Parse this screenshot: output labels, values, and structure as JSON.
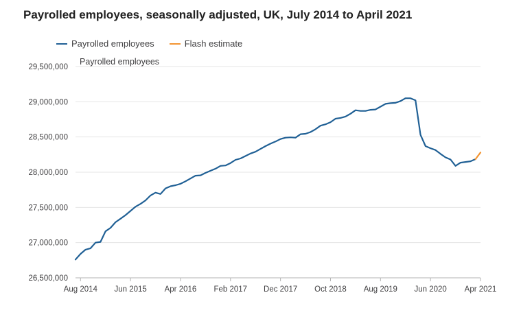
{
  "chart_data": {
    "type": "line",
    "title": "Payrolled employees, seasonally adjusted, UK, July 2014 to April 2021",
    "ylabel": "Payrolled employees",
    "xlabel": "",
    "ylim": [
      26500000,
      29500000
    ],
    "yticks": [
      26500000,
      27000000,
      27500000,
      28000000,
      28500000,
      29000000,
      29500000
    ],
    "ytick_labels": [
      "26,500,000",
      "27,000,000",
      "27,500,000",
      "28,000,000",
      "28,500,000",
      "29,000,000",
      "29,500,000"
    ],
    "x_range": [
      "2014-07",
      "2021-04"
    ],
    "xticks": [
      {
        "date": "2014-08",
        "label": "Aug 2014"
      },
      {
        "date": "2015-06",
        "label": "Jun 2015"
      },
      {
        "date": "2016-04",
        "label": "Apr 2016"
      },
      {
        "date": "2017-02",
        "label": "Feb 2017"
      },
      {
        "date": "2017-12",
        "label": "Dec 2017"
      },
      {
        "date": "2018-10",
        "label": "Oct 2018"
      },
      {
        "date": "2019-08",
        "label": "Aug 2019"
      },
      {
        "date": "2020-06",
        "label": "Jun 2020"
      },
      {
        "date": "2021-04",
        "label": "Apr 2021"
      }
    ],
    "grid": true,
    "legend_position": "top-left",
    "series": [
      {
        "name": "Payrolled employees",
        "color": "#206095",
        "x": [
          "2014-07",
          "2014-08",
          "2014-09",
          "2014-10",
          "2014-11",
          "2014-12",
          "2015-01",
          "2015-02",
          "2015-03",
          "2015-04",
          "2015-05",
          "2015-06",
          "2015-07",
          "2015-08",
          "2015-09",
          "2015-10",
          "2015-11",
          "2015-12",
          "2016-01",
          "2016-02",
          "2016-03",
          "2016-04",
          "2016-05",
          "2016-06",
          "2016-07",
          "2016-08",
          "2016-09",
          "2016-10",
          "2016-11",
          "2016-12",
          "2017-01",
          "2017-02",
          "2017-03",
          "2017-04",
          "2017-05",
          "2017-06",
          "2017-07",
          "2017-08",
          "2017-09",
          "2017-10",
          "2017-11",
          "2017-12",
          "2018-01",
          "2018-02",
          "2018-03",
          "2018-04",
          "2018-05",
          "2018-06",
          "2018-07",
          "2018-08",
          "2018-09",
          "2018-10",
          "2018-11",
          "2018-12",
          "2019-01",
          "2019-02",
          "2019-03",
          "2019-04",
          "2019-05",
          "2019-06",
          "2019-07",
          "2019-08",
          "2019-09",
          "2019-10",
          "2019-11",
          "2019-12",
          "2020-01",
          "2020-02",
          "2020-03",
          "2020-04",
          "2020-05",
          "2020-06",
          "2020-07",
          "2020-08",
          "2020-09",
          "2020-10",
          "2020-11",
          "2020-12",
          "2021-01",
          "2021-02",
          "2021-03"
        ],
        "values": [
          26760000,
          26840000,
          26900000,
          26920000,
          27000000,
          27010000,
          27160000,
          27210000,
          27290000,
          27340000,
          27390000,
          27450000,
          27510000,
          27550000,
          27600000,
          27670000,
          27710000,
          27690000,
          27770000,
          27800000,
          27815000,
          27835000,
          27870000,
          27910000,
          27950000,
          27955000,
          27990000,
          28020000,
          28050000,
          28090000,
          28095000,
          28130000,
          28175000,
          28195000,
          28230000,
          28265000,
          28290000,
          28330000,
          28370000,
          28405000,
          28435000,
          28470000,
          28490000,
          28495000,
          28490000,
          28540000,
          28545000,
          28570000,
          28610000,
          28660000,
          28680000,
          28710000,
          28760000,
          28770000,
          28790000,
          28830000,
          28880000,
          28870000,
          28870000,
          28885000,
          28890000,
          28930000,
          28970000,
          28980000,
          28985000,
          29010000,
          29050000,
          29050000,
          29020000,
          28530000,
          28370000,
          28340000,
          28315000,
          28260000,
          28210000,
          28180000,
          28090000,
          28135000,
          28145000,
          28155000,
          28185000
        ]
      },
      {
        "name": "Flash estimate",
        "color": "#F39431",
        "x": [
          "2021-03",
          "2021-04"
        ],
        "values": [
          28185000,
          28280000
        ]
      }
    ]
  }
}
